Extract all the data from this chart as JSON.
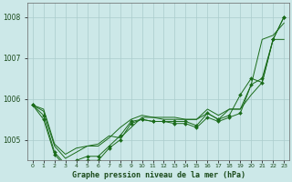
{
  "background_color": "#cce8e8",
  "grid_color": "#aacccc",
  "line_color": "#1a6b1a",
  "xlabel": "Graphe pression niveau de la mer (hPa)",
  "ylim": [
    1004.5,
    1008.35
  ],
  "xlim": [
    -0.5,
    23.5
  ],
  "yticks": [
    1005,
    1006,
    1007,
    1008
  ],
  "xtick_labels": [
    "0",
    "1",
    "2",
    "3",
    "4",
    "5",
    "6",
    "7",
    "8",
    "9",
    "10",
    "11",
    "12",
    "13",
    "14",
    "15",
    "16",
    "17",
    "18",
    "19",
    "20",
    "21",
    "22",
    "23"
  ],
  "series": [
    {
      "y": [
        1005.85,
        1005.75,
        1004.9,
        1004.65,
        1004.8,
        1004.85,
        1004.85,
        1005.05,
        1005.3,
        1005.5,
        1005.6,
        1005.55,
        1005.55,
        1005.55,
        1005.5,
        1005.5,
        1005.75,
        1005.6,
        1005.75,
        1005.75,
        1006.35,
        1007.45,
        1007.55,
        1007.85
      ],
      "marker": false
    },
    {
      "y": [
        1005.85,
        1005.7,
        1004.85,
        1004.55,
        1004.7,
        1004.85,
        1004.9,
        1005.1,
        1005.05,
        1005.3,
        1005.55,
        1005.55,
        1005.5,
        1005.5,
        1005.5,
        1005.5,
        1005.65,
        1005.5,
        1005.75,
        1005.75,
        1006.1,
        1006.4,
        1007.45,
        1007.45
      ],
      "marker": false
    },
    {
      "y": [
        1005.85,
        1005.6,
        1004.7,
        1004.4,
        1004.5,
        1004.6,
        1004.6,
        1004.85,
        1005.1,
        1005.45,
        1005.5,
        1005.45,
        1005.45,
        1005.45,
        1005.45,
        1005.35,
        1005.65,
        1005.5,
        1005.6,
        1006.1,
        1006.5,
        1006.4,
        1007.45,
        1008.0
      ],
      "marker": true
    },
    {
      "y": [
        1005.85,
        1005.5,
        1004.65,
        1004.35,
        1004.45,
        1004.5,
        1004.5,
        1004.8,
        1005.0,
        1005.4,
        1005.5,
        1005.45,
        1005.45,
        1005.4,
        1005.4,
        1005.3,
        1005.55,
        1005.45,
        1005.55,
        1005.65,
        1006.35,
        1006.5,
        1007.45,
        1008.0
      ],
      "marker": true
    }
  ]
}
